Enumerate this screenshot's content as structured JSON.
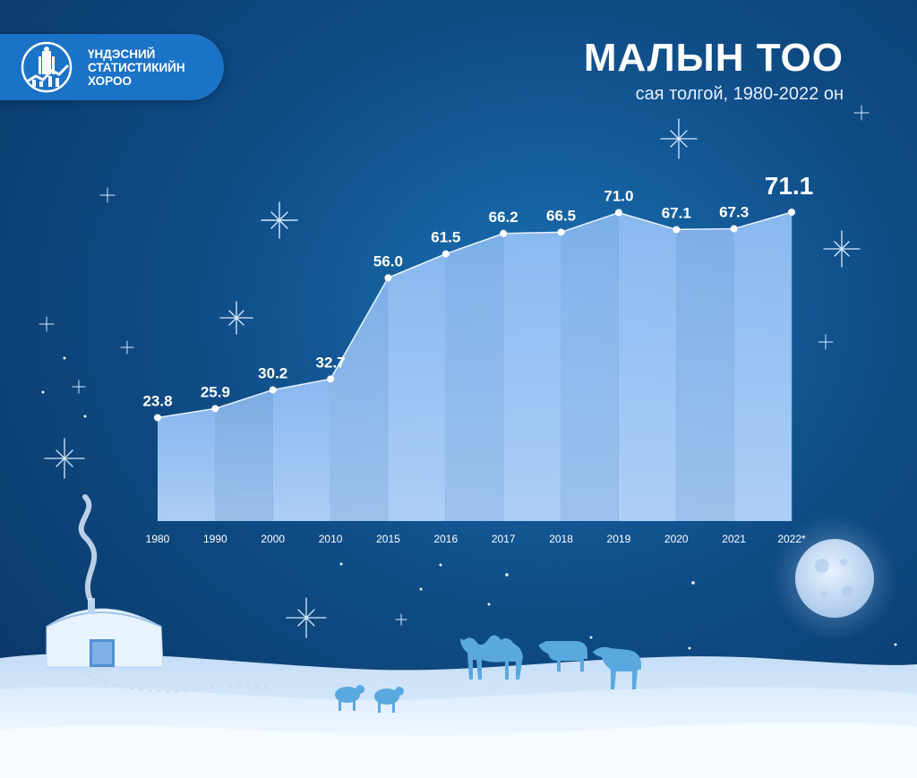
{
  "logo": {
    "line1": "ҮНДЭСНИЙ",
    "line2": "СТАТИСТИКИЙН",
    "line3": "ХОРОО"
  },
  "header": {
    "title": "МАЛЫН ТОО",
    "subtitle": "сая толгой, 1980-2022 он"
  },
  "colors": {
    "background": "#0f4c86",
    "area_top": "#8fbdf4",
    "area_bottom": "#b5d4fb",
    "label": "#ffffff"
  },
  "chart_data": {
    "type": "area",
    "title": "МАЛЫН ТОО",
    "subtitle": "сая толгой, 1980-2022 он",
    "categories": [
      "1980",
      "1990",
      "2000",
      "2010",
      "2015",
      "2016",
      "2017",
      "2018",
      "2019",
      "2020",
      "2021",
      "2022*"
    ],
    "values": [
      23.8,
      25.9,
      30.2,
      32.7,
      56.0,
      61.5,
      66.2,
      66.5,
      71.0,
      67.1,
      67.3,
      71.1
    ],
    "value_labels": [
      "23.8",
      "25.9",
      "30.2",
      "32.7",
      "56.0",
      "61.5",
      "66.2",
      "66.5",
      "71.0",
      "67.1",
      "67.3",
      "71.1"
    ],
    "ylim": [
      0,
      80
    ],
    "grid": false,
    "legend": "none",
    "highlight_last": true
  }
}
